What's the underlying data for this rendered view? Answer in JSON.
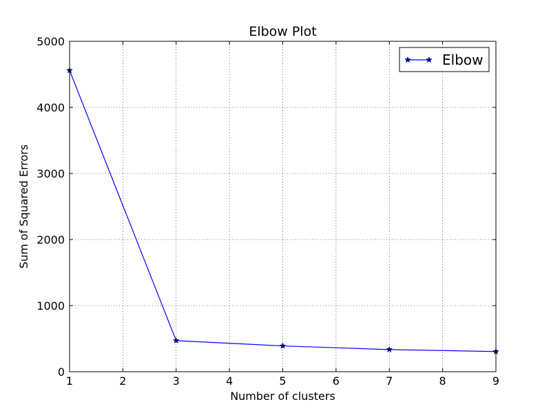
{
  "chart_data": {
    "type": "line",
    "title": "Elbow Plot",
    "xlabel": "Number of clusters",
    "ylabel": "Sum of Squared Errors",
    "xlim": [
      1,
      9
    ],
    "ylim": [
      0,
      5000
    ],
    "xticks": [
      1,
      2,
      3,
      4,
      5,
      6,
      7,
      8,
      9
    ],
    "yticks": [
      0,
      1000,
      2000,
      3000,
      4000,
      5000
    ],
    "grid": true,
    "legend_position": "top-right",
    "series": [
      {
        "name": "Elbow",
        "color": "#0000ff",
        "marker": "star",
        "marker_color": "#000080",
        "x": [
          1,
          3,
          5,
          7,
          9
        ],
        "y": [
          4560,
          470,
          390,
          335,
          305
        ]
      }
    ]
  }
}
